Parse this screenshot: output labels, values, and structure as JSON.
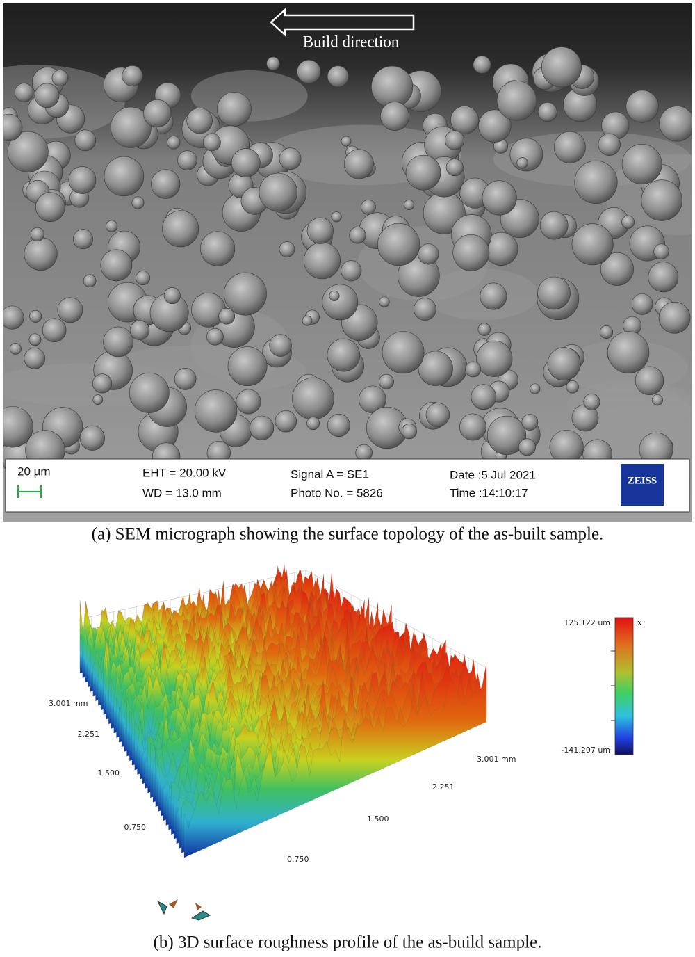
{
  "panel_a": {
    "annotation": "Build direction",
    "info_bar": {
      "scale": "20 µm",
      "eht": "EHT = 20.00 kV",
      "wd": "WD = 13.0 mm",
      "signal": "Signal A = SE1",
      "photo": "Photo No. = 5826",
      "date": "Date :5 Jul 2021",
      "time": "Time :14:10:17",
      "logo": "ZEISS"
    },
    "caption": "(a) SEM micrograph showing the surface topology of the as-built sample."
  },
  "panel_b": {
    "y_axis_labels": [
      "3.001 mm",
      "2.251",
      "1.500",
      "0.750"
    ],
    "x_axis_labels": [
      "0.750",
      "1.500",
      "2.251",
      "3.001 mm"
    ],
    "colorbar": {
      "max": "125.122 um",
      "min": "-141.207 um",
      "unit_mark": "x"
    },
    "caption": "(b) 3D surface roughness profile of the as-build sample."
  }
}
